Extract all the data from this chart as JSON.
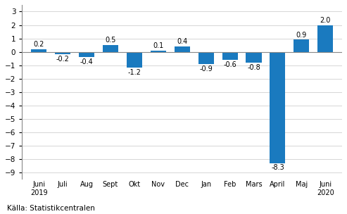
{
  "categories": [
    "Juni\n2019",
    "Juli",
    "Aug",
    "Sept",
    "Okt",
    "Nov",
    "Dec",
    "Jan",
    "Feb",
    "Mars",
    "April",
    "Maj",
    "Juni\n2020"
  ],
  "values": [
    0.2,
    -0.2,
    -0.4,
    0.5,
    -1.2,
    0.1,
    0.4,
    -0.9,
    -0.6,
    -0.8,
    -8.3,
    0.9,
    2.0
  ],
  "bar_color": "#1a7abf",
  "ylim": [
    -9.5,
    3.5
  ],
  "yticks": [
    -9,
    -8,
    -7,
    -6,
    -5,
    -4,
    -3,
    -2,
    -1,
    0,
    1,
    2,
    3
  ],
  "source_text": "Källa: Statistikcentralen",
  "background_color": "#ffffff",
  "grid_color": "#d0d0d0",
  "label_fontsize": 7.0,
  "value_fontsize": 7.0,
  "source_fontsize": 7.5,
  "tick_label_fontsize": 7.5
}
